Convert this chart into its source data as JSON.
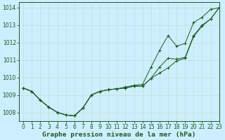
{
  "title": "Graphe pression niveau de la mer (hPa)",
  "background_color": "#cceeff",
  "plot_bg_color": "#cceeff",
  "grid_color": "#c8dfc8",
  "line_color": "#1a5c1a",
  "xlim": [
    -0.5,
    23
  ],
  "ylim": [
    1007.5,
    1014.3
  ],
  "yticks": [
    1008,
    1009,
    1010,
    1011,
    1012,
    1013,
    1014
  ],
  "xticks": [
    0,
    1,
    2,
    3,
    4,
    5,
    6,
    7,
    8,
    9,
    10,
    11,
    12,
    13,
    14,
    15,
    16,
    17,
    18,
    19,
    20,
    21,
    22,
    23
  ],
  "series1": [
    1009.4,
    1009.2,
    1008.7,
    1008.3,
    1008.0,
    1007.85,
    1007.8,
    1008.25,
    1009.0,
    1009.2,
    1009.3,
    1009.35,
    1009.4,
    1009.5,
    1009.5,
    1009.95,
    1010.25,
    1010.55,
    1010.95,
    1011.1,
    1012.35,
    1012.95,
    1013.35,
    1014.0
  ],
  "series2": [
    1009.4,
    1009.2,
    1008.7,
    1008.3,
    1008.0,
    1007.85,
    1007.8,
    1008.25,
    1009.0,
    1009.2,
    1009.3,
    1009.35,
    1009.4,
    1009.5,
    1009.5,
    1009.95,
    1010.6,
    1011.1,
    1011.05,
    1011.15,
    1012.4,
    1013.0,
    1013.35,
    1014.0
  ],
  "series3": [
    1009.4,
    1009.2,
    1008.7,
    1008.3,
    1008.0,
    1007.85,
    1007.8,
    1008.25,
    1009.0,
    1009.2,
    1009.3,
    1009.35,
    1009.45,
    1009.55,
    1009.6,
    1010.6,
    1011.55,
    1012.4,
    1011.8,
    1011.95,
    1013.15,
    1013.45,
    1013.9,
    1014.0
  ],
  "tick_fontsize": 5.5,
  "title_fontsize": 6.8,
  "figsize": [
    3.2,
    2.0
  ],
  "dpi": 100
}
